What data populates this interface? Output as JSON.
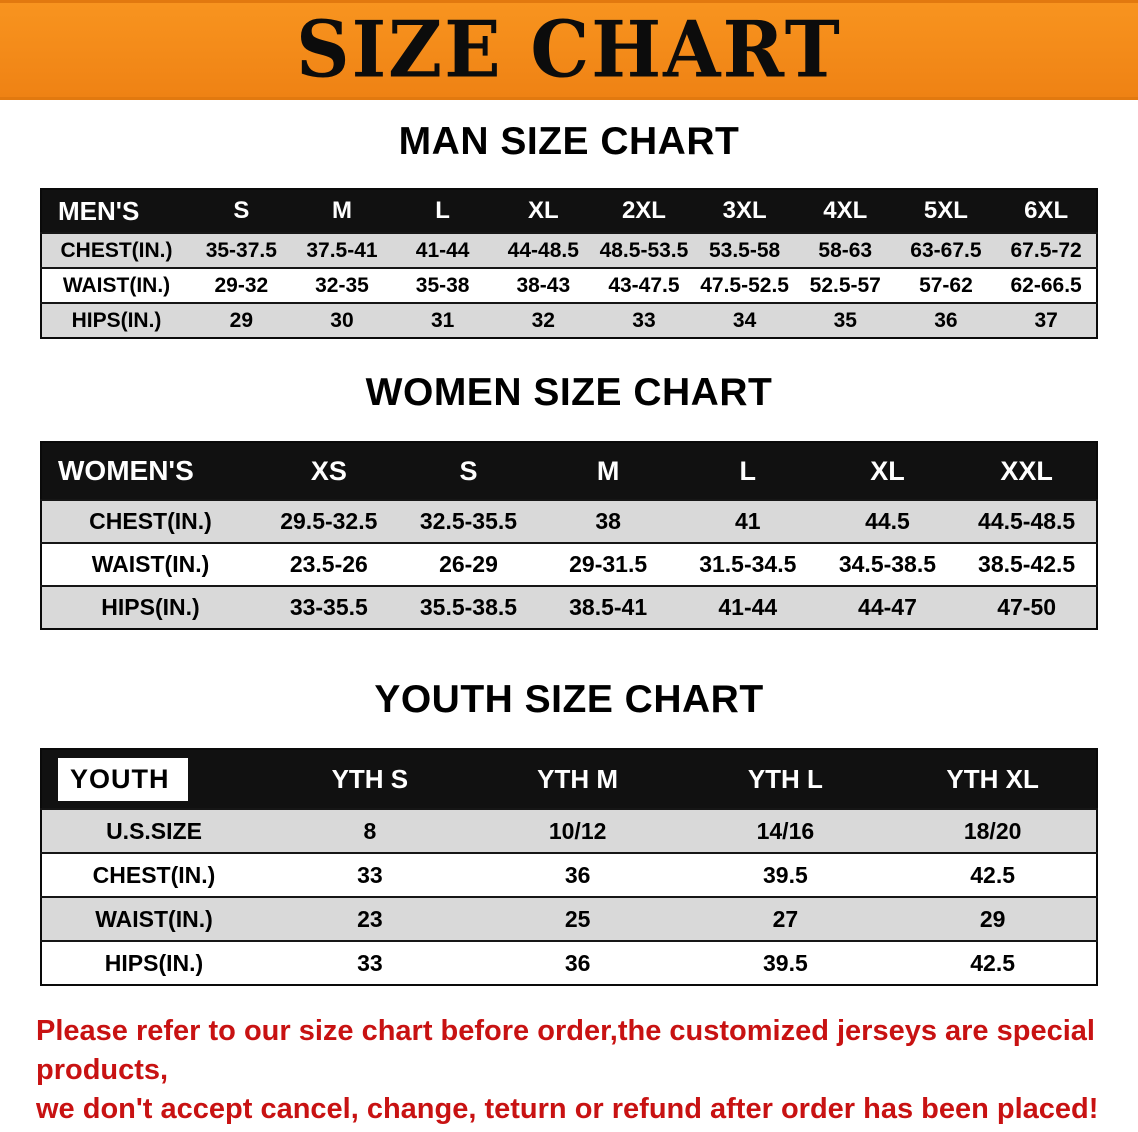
{
  "banner": {
    "title": "SIZE CHART",
    "bg_color": "#F68A1C"
  },
  "sections": [
    {
      "id": "men",
      "heading": "MAN SIZE CHART",
      "table": {
        "header": [
          "MEN'S",
          "S",
          "M",
          "L",
          "XL",
          "2XL",
          "3XL",
          "4XL",
          "5XL",
          "6XL"
        ],
        "rows": [
          [
            "CHEST(IN.)",
            "35-37.5",
            "37.5-41",
            "41-44",
            "44-48.5",
            "48.5-53.5",
            "53.5-58",
            "58-63",
            "63-67.5",
            "67.5-72"
          ],
          [
            "WAIST(IN.)",
            "29-32",
            "32-35",
            "35-38",
            "38-43",
            "43-47.5",
            "47.5-52.5",
            "52.5-57",
            "57-62",
            "62-66.5"
          ],
          [
            "HIPS(IN.)",
            "29",
            "30",
            "31",
            "32",
            "33",
            "34",
            "35",
            "36",
            "37"
          ]
        ]
      }
    },
    {
      "id": "women",
      "heading": "WOMEN SIZE CHART",
      "table": {
        "header": [
          "WOMEN'S",
          "XS",
          "S",
          "M",
          "L",
          "XL",
          "XXL"
        ],
        "rows": [
          [
            "CHEST(IN.)",
            "29.5-32.5",
            "32.5-35.5",
            "38",
            "41",
            "44.5",
            "44.5-48.5"
          ],
          [
            "WAIST(IN.)",
            "23.5-26",
            "26-29",
            "29-31.5",
            "31.5-34.5",
            "34.5-38.5",
            "38.5-42.5"
          ],
          [
            "HIPS(IN.)",
            "33-35.5",
            "35.5-38.5",
            "38.5-41",
            "41-44",
            "44-47",
            "47-50"
          ]
        ]
      }
    },
    {
      "id": "youth",
      "heading": "YOUTH SIZE CHART",
      "table": {
        "header": [
          "YOUTH",
          "YTH S",
          "YTH M",
          "YTH L",
          "YTH XL"
        ],
        "rows": [
          [
            "U.S.SIZE",
            "8",
            "10/12",
            "14/16",
            "18/20"
          ],
          [
            "CHEST(IN.)",
            "33",
            "36",
            "39.5",
            "42.5"
          ],
          [
            "WAIST(IN.)",
            "23",
            "25",
            "27",
            "29"
          ],
          [
            "HIPS(IN.)",
            "33",
            "36",
            "39.5",
            "42.5"
          ]
        ]
      }
    }
  ],
  "disclaimer": {
    "color": "#C81212",
    "line1": "Please refer to our size chart before order,the customized jerseys are special products,",
    "line2": "we don't accept cancel, change, teturn or refund after order has been placed!"
  }
}
